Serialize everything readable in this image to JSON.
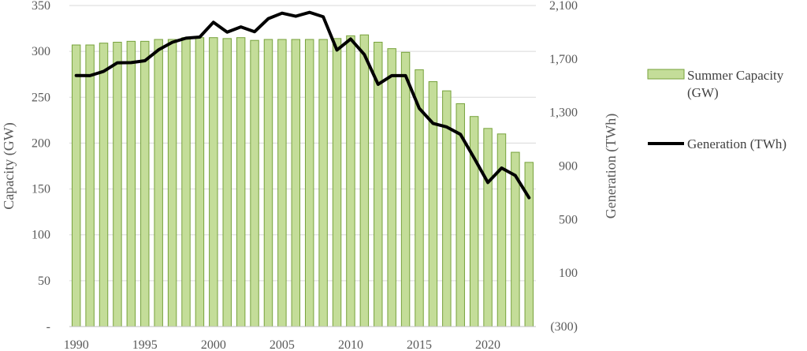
{
  "chart_data": {
    "type": "bar+line",
    "x": [
      1990,
      1991,
      1992,
      1993,
      1994,
      1995,
      1996,
      1997,
      1998,
      1999,
      2000,
      2001,
      2002,
      2003,
      2004,
      2005,
      2006,
      2007,
      2008,
      2009,
      2010,
      2011,
      2012,
      2013,
      2014,
      2015,
      2016,
      2017,
      2018,
      2019,
      2020,
      2021,
      2022,
      2023
    ],
    "x_tick_labels": [
      "1990",
      "1995",
      "2000",
      "2005",
      "2010",
      "2015",
      "2020"
    ],
    "series": [
      {
        "name": "Summer Capacity (GW)",
        "type": "bar",
        "axis": "left",
        "color": "#c4dd99",
        "edge_color": "#77a23c",
        "values": [
          307,
          307,
          309,
          310,
          311,
          311,
          313,
          313,
          315,
          315,
          315,
          314,
          315,
          312,
          313,
          313,
          313,
          313,
          313,
          314,
          317,
          318,
          310,
          303,
          299,
          280,
          267,
          257,
          243,
          229,
          216,
          210,
          190,
          179
        ]
      },
      {
        "name": "Generation (TWh)",
        "type": "line",
        "axis": "right",
        "color": "#000000",
        "values": [
          1577,
          1576,
          1608,
          1672,
          1673,
          1687,
          1769,
          1825,
          1856,
          1864,
          1975,
          1901,
          1940,
          1904,
          2002,
          2043,
          2020,
          2049,
          2016,
          1767,
          1850,
          1733,
          1511,
          1576,
          1576,
          1331,
          1219,
          1192,
          1137,
          960,
          777,
          885,
          829,
          663
        ]
      }
    ],
    "left_axis": {
      "title": "Capacity (GW)",
      "ylim": [
        0,
        350
      ],
      "ticks": [
        0,
        50,
        100,
        150,
        200,
        250,
        300,
        350
      ],
      "tick_labels": [
        "-",
        "50",
        "100",
        "150",
        "200",
        "250",
        "300",
        "350"
      ]
    },
    "right_axis": {
      "title": "Generation (TWh)",
      "ylim": [
        -300,
        2100
      ],
      "ticks": [
        -300,
        100,
        500,
        900,
        1300,
        1700,
        2100
      ],
      "tick_labels": [
        "(300)",
        "100",
        "500",
        "900",
        "1,300",
        "1,700",
        "2,100"
      ]
    },
    "grid": true,
    "legend_position": "right",
    "legend": [
      {
        "label_lines": [
          "Summer Capacity",
          "(GW)"
        ],
        "key": "bar"
      },
      {
        "label_lines": [
          "Generation (TWh)"
        ],
        "key": "line"
      }
    ]
  }
}
